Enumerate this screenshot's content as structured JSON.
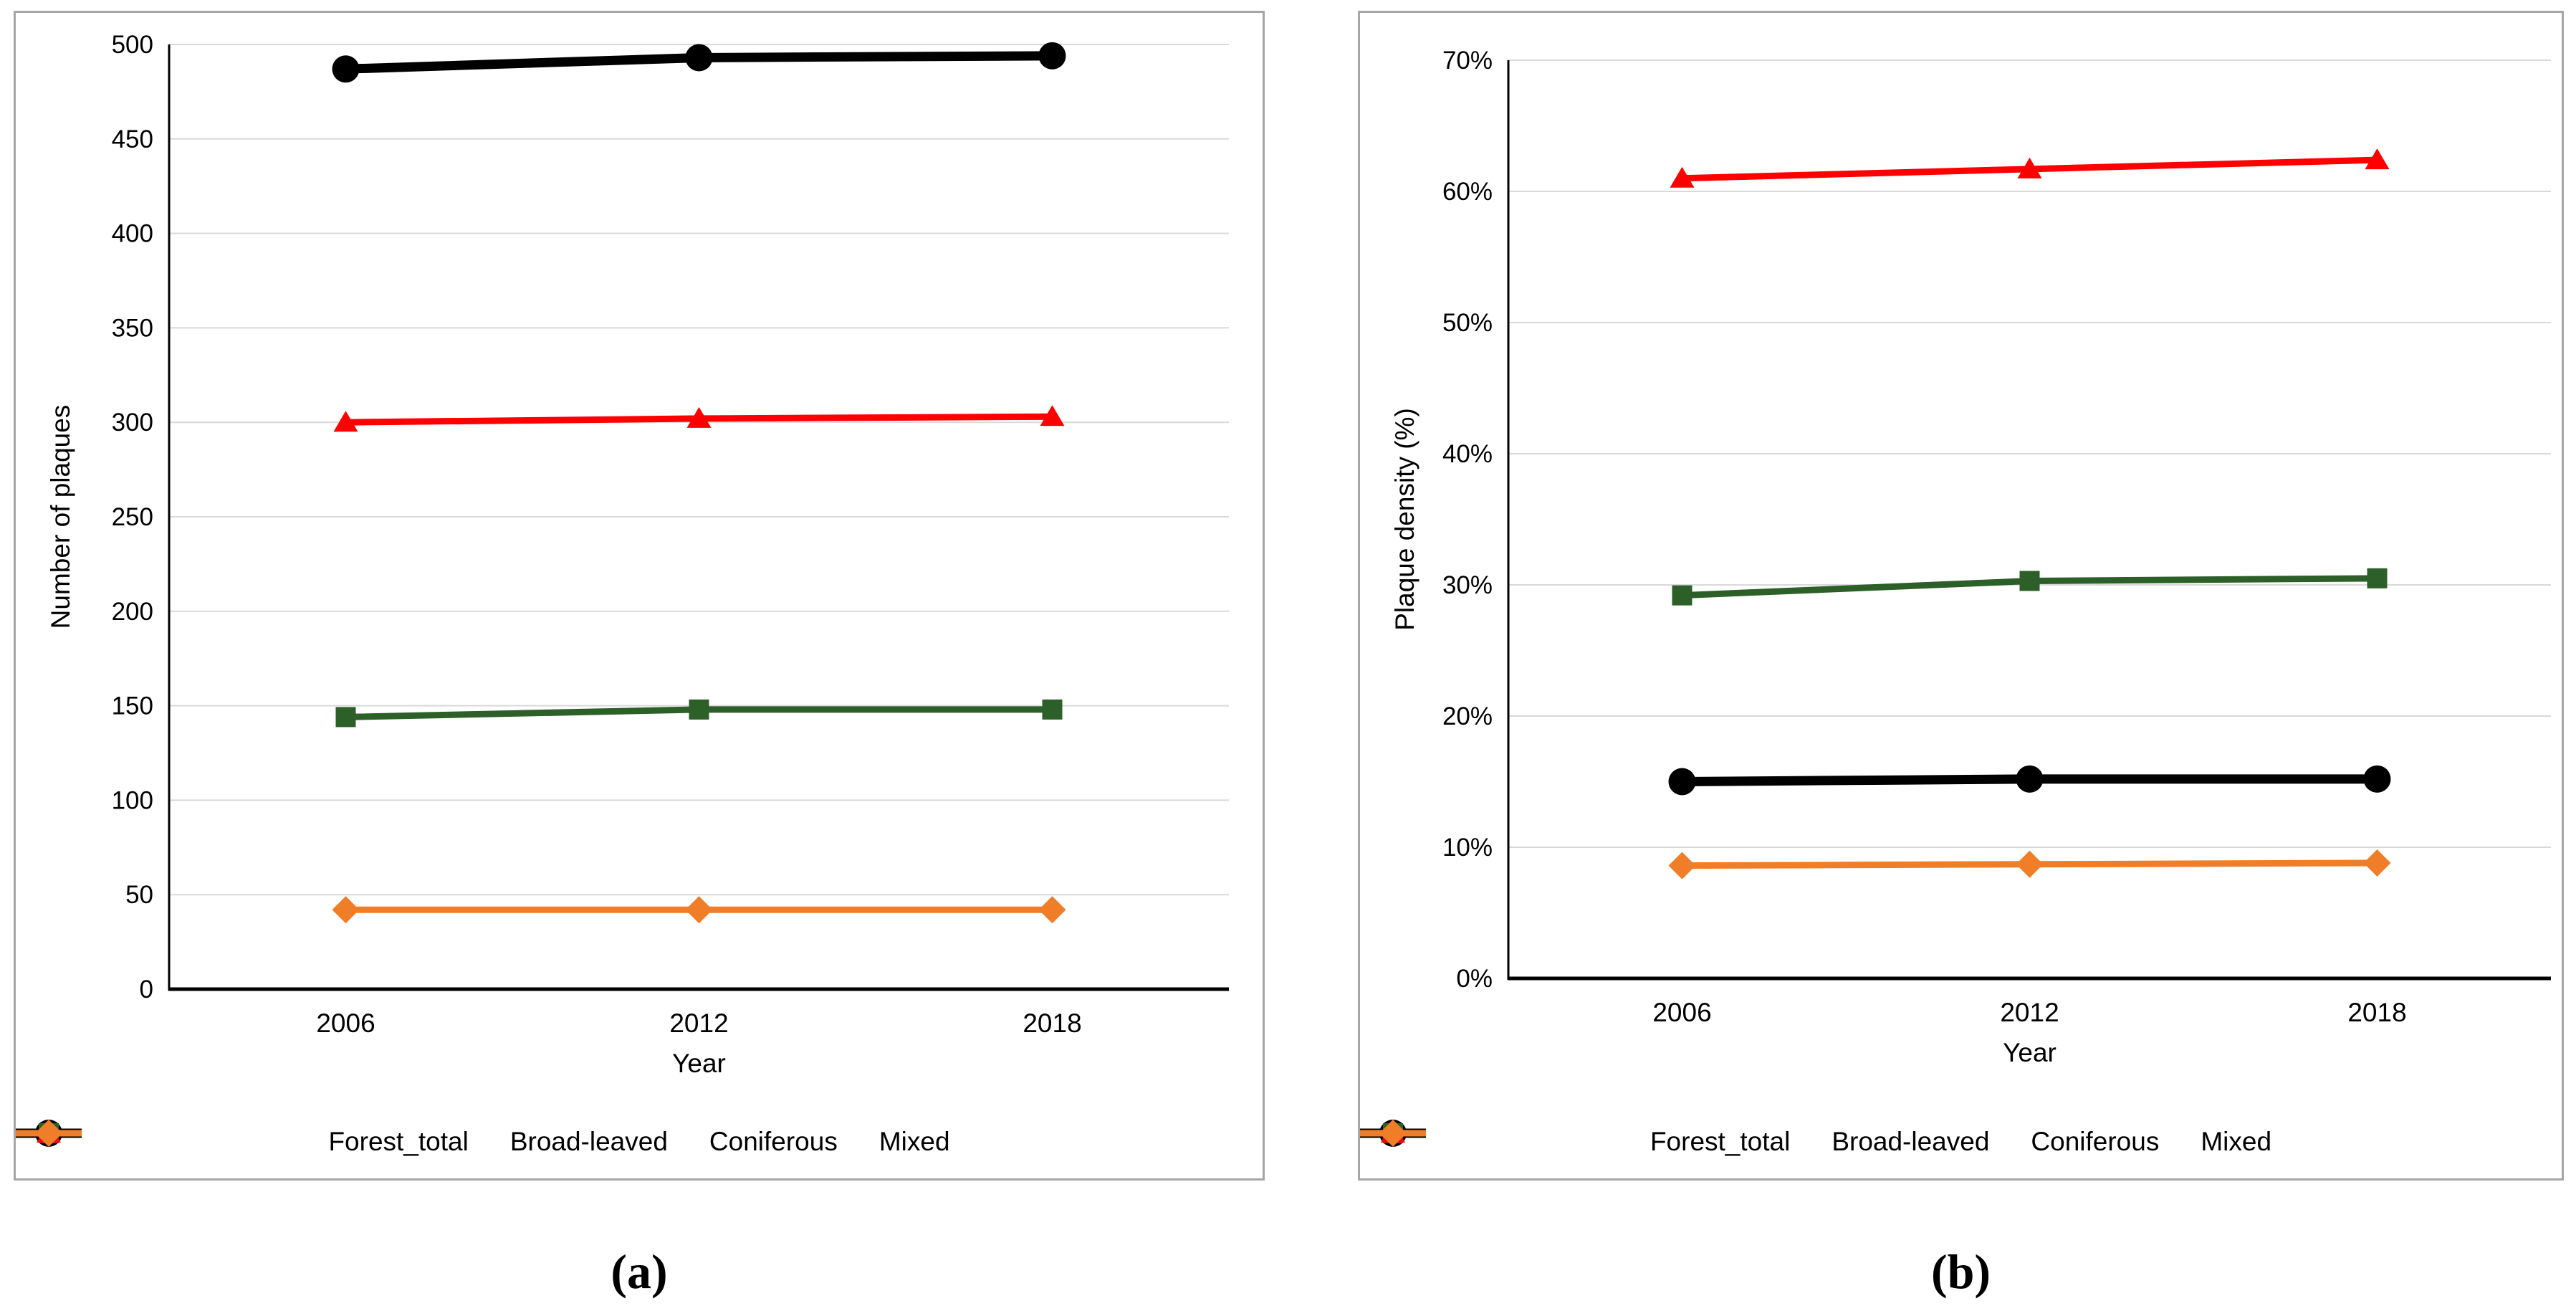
{
  "page": {
    "background": "#ffffff"
  },
  "colors": {
    "gridline": "#d9d9d9",
    "axis": "#000000",
    "panel_border": "#a6a6a6",
    "text": "#000000"
  },
  "chart_data": [
    {
      "type": "line",
      "caption": "(a)",
      "xlabel": "Year",
      "ylabel": "Number of plaques",
      "categories": [
        "2006",
        "2012",
        "2018"
      ],
      "ylim": [
        0,
        500
      ],
      "ytick_step": 50,
      "percent": false,
      "grid": true,
      "legend_position": "bottom",
      "series": [
        {
          "name": "Forest_total",
          "color": "#000000",
          "marker": "circle",
          "line_width": 13,
          "values": [
            487,
            493,
            494
          ]
        },
        {
          "name": "Broad-leaved",
          "color": "#2D5F28",
          "marker": "square",
          "line_width": 9,
          "values": [
            144,
            148,
            148
          ]
        },
        {
          "name": "Coniferous",
          "color": "#FF0000",
          "marker": "triangle",
          "line_width": 9,
          "values": [
            300,
            302,
            303
          ]
        },
        {
          "name": "Mixed",
          "color": "#F07D28",
          "marker": "diamond",
          "line_width": 9,
          "values": [
            42,
            42,
            42
          ]
        }
      ]
    },
    {
      "type": "line",
      "caption": "(b)",
      "xlabel": "Year",
      "ylabel": "Plaque density (%)",
      "categories": [
        "2006",
        "2012",
        "2018"
      ],
      "ylim": [
        0,
        70
      ],
      "ytick_step": 10,
      "percent": true,
      "grid": true,
      "legend_position": "bottom",
      "series": [
        {
          "name": "Forest_total",
          "color": "#000000",
          "marker": "circle",
          "line_width": 13,
          "values": [
            15.0,
            15.2,
            15.2
          ]
        },
        {
          "name": "Broad-leaved",
          "color": "#2D5F28",
          "marker": "square",
          "line_width": 9,
          "values": [
            29.2,
            30.3,
            30.5
          ]
        },
        {
          "name": "Coniferous",
          "color": "#FF0000",
          "marker": "triangle",
          "line_width": 9,
          "values": [
            61.0,
            61.7,
            62.4
          ]
        },
        {
          "name": "Mixed",
          "color": "#F07D28",
          "marker": "diamond",
          "line_width": 9,
          "values": [
            8.6,
            8.7,
            8.8
          ]
        }
      ]
    }
  ]
}
